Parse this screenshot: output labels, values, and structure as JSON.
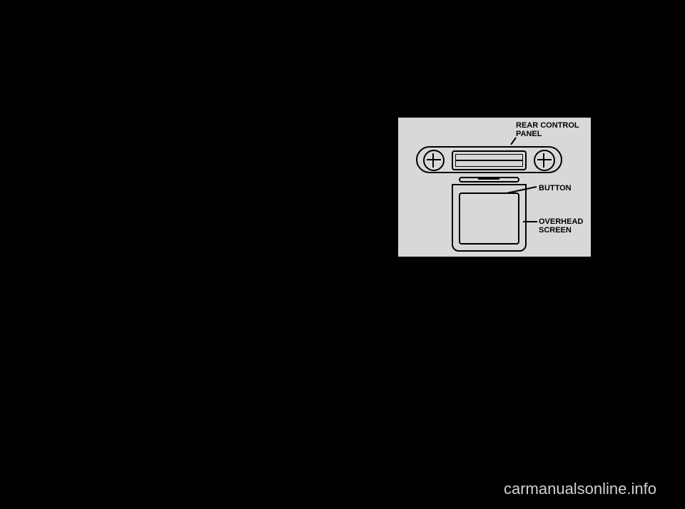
{
  "diagram": {
    "labels": {
      "rear_control_panel": "REAR CONTROL\nPANEL",
      "button": "BUTTON",
      "overhead_screen": "OVERHEAD\nSCREEN"
    },
    "colors": {
      "page_background": "#000000",
      "diagram_background": "#d8d8d8",
      "line_color": "#000000",
      "label_color": "#000000"
    },
    "label_fontsize": 11,
    "label_fontweight": "bold"
  },
  "watermark": {
    "text": "carmanualsonline.info",
    "color": "#d0d0d0",
    "fontsize": 22
  }
}
